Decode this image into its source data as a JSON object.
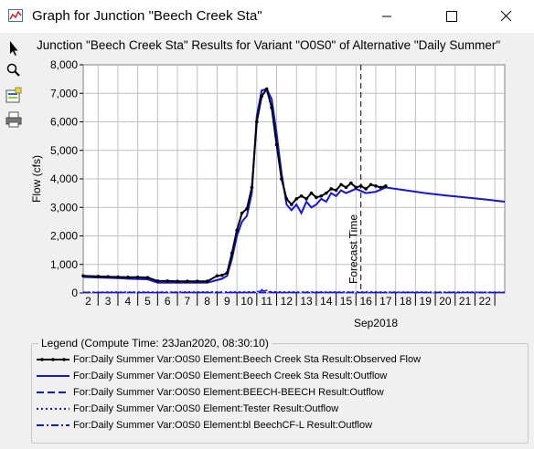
{
  "window": {
    "title": "Graph for Junction \"Beech Creek Sta\"",
    "minimize_icon": "minimize-icon",
    "maximize_icon": "maximize-icon",
    "close_icon": "close-icon"
  },
  "toolbar": {
    "tools": [
      {
        "name": "pointer-tool-icon"
      },
      {
        "name": "zoom-tool-icon"
      },
      {
        "name": "properties-tool-icon"
      },
      {
        "name": "print-tool-icon"
      }
    ]
  },
  "colors": {
    "observed": "#000000",
    "outflow": "#1414e6",
    "grid": "#c0c0c0",
    "plot_bg": "#ffffff"
  },
  "chart_data": {
    "type": "line",
    "title": "Junction \"Beech Creek Sta\" Results for Variant \"O0S0\" of Alternative \"Daily Summer\"",
    "ylabel": "Flow (cfs)",
    "xlabel": "Sep2018",
    "ylim": [
      0,
      8000
    ],
    "xlim": [
      1.75,
      23.0
    ],
    "y_ticks": [
      "0",
      "1,000",
      "2,000",
      "3,000",
      "4,000",
      "5,000",
      "6,000",
      "7,000",
      "8,000"
    ],
    "x_ticks": [
      "2",
      "3",
      "4",
      "5",
      "6",
      "7",
      "8",
      "9",
      "10",
      "11",
      "12",
      "13",
      "14",
      "15",
      "16",
      "17",
      "18",
      "19",
      "20",
      "21",
      "22"
    ],
    "grid": true,
    "legend_position": "bottom",
    "annotation": {
      "label": "Forecast Time",
      "x": 15.75
    },
    "series": [
      {
        "name": "Observed Flow",
        "style": "solid-markers",
        "x": [
          1.75,
          2.5,
          3.0,
          3.5,
          4.0,
          4.5,
          5.0,
          5.5,
          6.0,
          6.5,
          7.0,
          7.5,
          8.0,
          8.5,
          8.75,
          9.0,
          9.25,
          9.5,
          9.75,
          10.0,
          10.25,
          10.5,
          10.75,
          11.0,
          11.25,
          11.5,
          11.75,
          12.0,
          12.25,
          12.5,
          12.75,
          13.0,
          13.25,
          13.5,
          13.75,
          14.0,
          14.25,
          14.5,
          14.75,
          15.0,
          15.25,
          15.5,
          15.75,
          16.0,
          16.25,
          16.5,
          16.75,
          17.0
        ],
        "y": [
          600,
          580,
          570,
          560,
          550,
          550,
          540,
          420,
          420,
          410,
          410,
          410,
          410,
          600,
          620,
          700,
          1400,
          2200,
          2800,
          2950,
          3700,
          6000,
          6900,
          7150,
          6500,
          5200,
          4000,
          3300,
          3100,
          3300,
          3400,
          3300,
          3500,
          3350,
          3400,
          3500,
          3650,
          3600,
          3800,
          3700,
          3850,
          3700,
          3750,
          3650,
          3800,
          3750,
          3700,
          3750
        ]
      },
      {
        "name": "Outflow",
        "style": "solid",
        "x": [
          1.75,
          2.5,
          3.0,
          3.5,
          4.0,
          4.5,
          5.0,
          5.5,
          6.0,
          6.5,
          7.0,
          7.5,
          8.0,
          8.5,
          8.75,
          9.0,
          9.25,
          9.5,
          9.75,
          10.0,
          10.25,
          10.5,
          10.75,
          11.0,
          11.25,
          11.5,
          11.75,
          12.0,
          12.25,
          12.5,
          12.75,
          13.0,
          13.25,
          13.5,
          13.75,
          14.0,
          14.25,
          14.5,
          14.75,
          15.0,
          15.5,
          16.0,
          16.5,
          17.0,
          18.0,
          19.0,
          20.0,
          21.0,
          22.0,
          23.0
        ],
        "y": [
          560,
          540,
          530,
          520,
          500,
          490,
          480,
          360,
          360,
          360,
          360,
          360,
          360,
          450,
          500,
          600,
          1200,
          2000,
          2500,
          2700,
          3500,
          6200,
          7100,
          7150,
          6800,
          5600,
          4200,
          3100,
          2900,
          3100,
          2800,
          3200,
          3000,
          3100,
          3300,
          3200,
          3500,
          3400,
          3600,
          3500,
          3650,
          3500,
          3550,
          3700,
          3600,
          3500,
          3420,
          3350,
          3280,
          3200
        ]
      },
      {
        "name": "BEECH-BEECH Outflow",
        "style": "dashed",
        "x": [
          1.75,
          23.0
        ],
        "y": [
          15,
          15
        ]
      },
      {
        "name": "Tester Outflow",
        "style": "dotted",
        "x": [
          1.75,
          10.5,
          10.75,
          11.0,
          11.25,
          23.0
        ],
        "y": [
          30,
          40,
          120,
          90,
          40,
          30
        ]
      },
      {
        "name": "bl BeechCF-L Outflow",
        "style": "dashdot",
        "x": [
          1.75,
          10.5,
          10.75,
          11.0,
          11.25,
          23.0
        ],
        "y": [
          20,
          20,
          80,
          60,
          20,
          20
        ]
      }
    ]
  },
  "legend": {
    "title": "Legend (Compute Time: 23Jan2020, 08:30:10)",
    "items": [
      {
        "label": "For:Daily Summer Var:O0S0 Element:Beech Creek Sta Result:Observed Flow",
        "style": "solid-markers",
        "color": "#000000"
      },
      {
        "label": "For:Daily Summer Var:O0S0 Element:Beech Creek Sta Result:Outflow",
        "style": "solid",
        "color": "#1414e6"
      },
      {
        "label": "For:Daily Summer Var:O0S0 Element:BEECH-BEECH Result:Outflow",
        "style": "dashed",
        "color": "#1414e6"
      },
      {
        "label": "For:Daily Summer Var:O0S0 Element:Tester Result:Outflow",
        "style": "dotted",
        "color": "#1414e6"
      },
      {
        "label": "For:Daily Summer Var:O0S0 Element:bl BeechCF-L Result:Outflow",
        "style": "dashdot",
        "color": "#1414e6"
      }
    ]
  }
}
